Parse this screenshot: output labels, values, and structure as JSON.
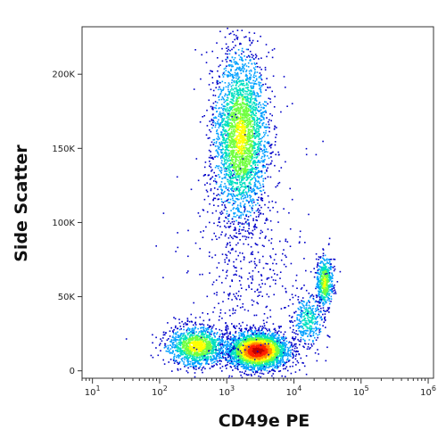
{
  "chart_data": {
    "type": "scatter",
    "plot_style": "flow cytometry pseudocolor density dot plot",
    "title": "",
    "xlabel": "CD49e PE",
    "ylabel": "Side Scatter",
    "x_scale": "log",
    "xlim": [
      7,
      1200000
    ],
    "ylim": [
      -5000,
      232000
    ],
    "x_ticks": [
      {
        "value": 10,
        "base": "10",
        "exp": "1"
      },
      {
        "value": 100,
        "base": "10",
        "exp": "2"
      },
      {
        "value": 1000,
        "base": "10",
        "exp": "3"
      },
      {
        "value": 10000,
        "base": "10",
        "exp": "4"
      },
      {
        "value": 100000,
        "base": "10",
        "exp": "5"
      },
      {
        "value": 1000000,
        "base": "10",
        "exp": "6"
      }
    ],
    "y_ticks": [
      {
        "value": 0,
        "label": "0"
      },
      {
        "value": 50000,
        "label": "50K"
      },
      {
        "value": 100000,
        "label": "100K"
      },
      {
        "value": 150000,
        "label": "150K"
      },
      {
        "value": 200000,
        "label": "200K"
      }
    ],
    "grid": false,
    "legend": "none",
    "density_colors": [
      "#0000c8",
      "#00a0ff",
      "#00e0c0",
      "#70ff40",
      "#ffff00",
      "#ff9000",
      "#ff2000",
      "#c00000"
    ],
    "populations": [
      {
        "x_log_center": 3.2,
        "x_log_sd": 0.2,
        "y_center": 158000,
        "y_sd": 28000,
        "density": 3000,
        "peak": 0.55
      },
      {
        "x_log_center": 3.45,
        "x_log_sd": 0.22,
        "y_center": 14000,
        "y_sd": 6000,
        "density": 3200,
        "peak": 1.0
      },
      {
        "x_log_center": 2.55,
        "x_log_sd": 0.22,
        "y_center": 17000,
        "y_sd": 6500,
        "density": 1300,
        "peak": 0.6
      },
      {
        "x_log_center": 4.45,
        "x_log_sd": 0.06,
        "y_center": 60000,
        "y_sd": 9000,
        "density": 550,
        "peak": 0.55
      },
      {
        "x_log_center": 4.2,
        "x_log_sd": 0.12,
        "y_center": 35000,
        "y_sd": 9000,
        "density": 350,
        "peak": 0.3
      },
      {
        "x_log_center": 3.3,
        "x_log_sd": 0.45,
        "y_center": 70000,
        "y_sd": 40000,
        "density": 500,
        "peak": 0.05
      }
    ]
  }
}
